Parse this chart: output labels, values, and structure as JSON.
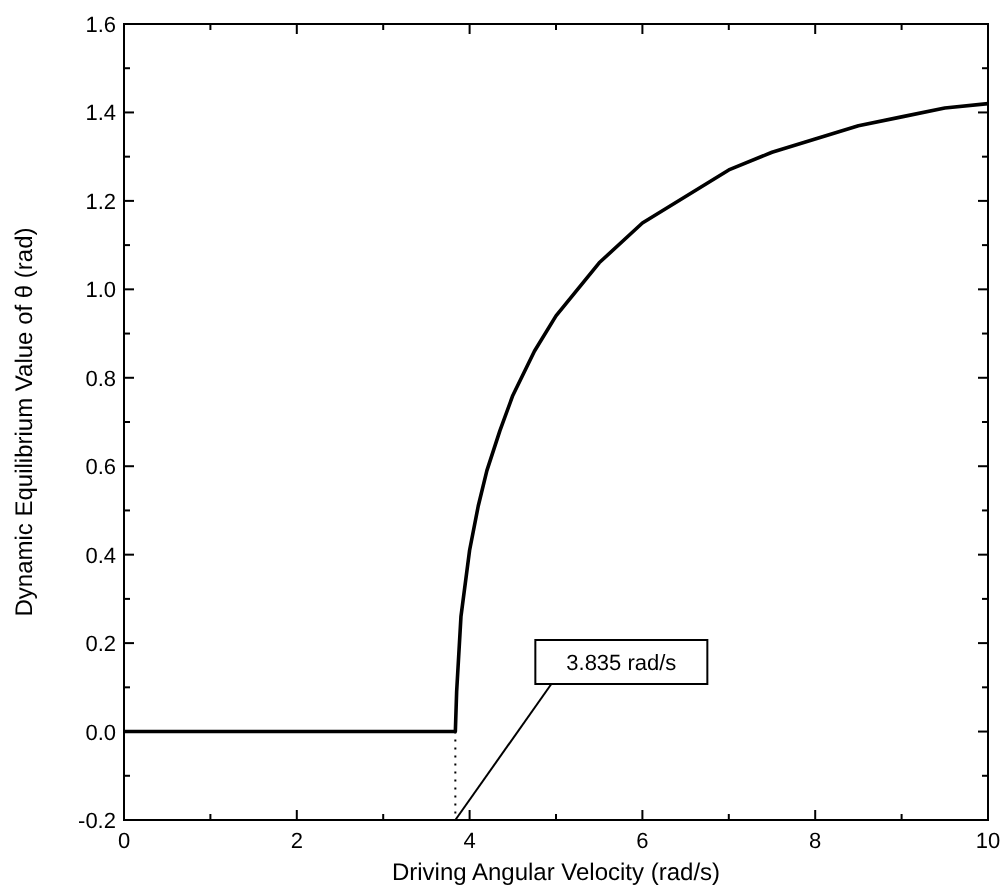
{
  "chart_data": {
    "type": "line",
    "xlabel": "Driving Angular Velocity (rad/s)",
    "ylabel": "Dynamic Equilibrium Value of θ (rad)",
    "series": [
      {
        "color": "#000000",
        "x": [
          0,
          1,
          2,
          3,
          3.835,
          3.85,
          3.9,
          4.0,
          4.1,
          4.2,
          4.35,
          4.5,
          4.75,
          5.0,
          5.5,
          6.0,
          6.5,
          7.0,
          7.5,
          8.0,
          8.5,
          9.0,
          9.5,
          10.0
        ],
        "values": [
          0,
          0,
          0,
          0,
          0,
          0.09,
          0.26,
          0.41,
          0.51,
          0.59,
          0.68,
          0.76,
          0.86,
          0.94,
          1.06,
          1.15,
          1.21,
          1.27,
          1.31,
          1.34,
          1.37,
          1.39,
          1.41,
          1.42
        ]
      }
    ],
    "xlim": [
      0,
      10
    ],
    "ylim": [
      -0.2,
      1.6
    ],
    "xticks": [
      0,
      2,
      4,
      6,
      8,
      10
    ],
    "yticks": [
      {
        "value": -0.2,
        "label": "-0.2"
      },
      {
        "value": 0,
        "label": "0.0"
      },
      {
        "value": 0.2,
        "label": "0.2"
      },
      {
        "value": 0.4,
        "label": "0.4"
      },
      {
        "value": 0.6,
        "label": "0.6"
      },
      {
        "value": 0.8,
        "label": "0.8"
      },
      {
        "value": 1,
        "label": "1.0"
      },
      {
        "value": 1.2,
        "label": "1.2"
      },
      {
        "value": 1.4,
        "label": "1.4"
      },
      {
        "value": 1.6,
        "label": "1.6"
      }
    ],
    "ref_lines": [
      {
        "axis": "x",
        "value": 3.835,
        "label": "3.835 rad/s",
        "line_style": "dotted"
      }
    ],
    "grid": false,
    "marker": "none",
    "line_style": "solid"
  }
}
